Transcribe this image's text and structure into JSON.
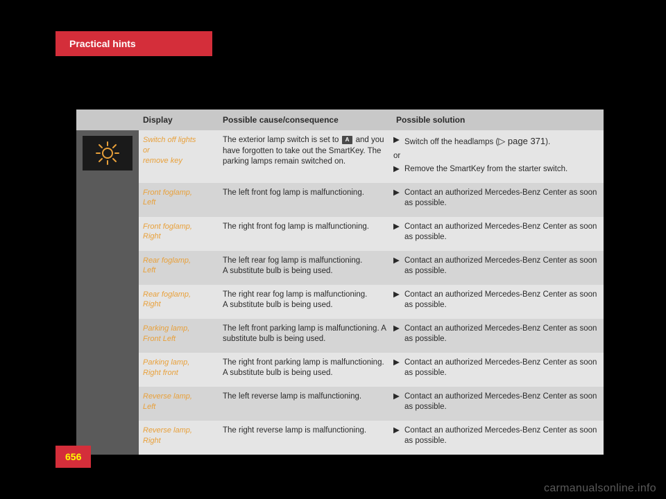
{
  "header": {
    "tab": "Practical hints"
  },
  "page_number": "656",
  "watermark": "carmanualsonline.info",
  "icon": {
    "stroke": "#e8a03a",
    "bg": "#1a1a1a"
  },
  "columns": {
    "display": "Display",
    "cause": "Possible cause/consequence",
    "solution": "Possible solution"
  },
  "first_row": {
    "display_lines": [
      "Switch off lights",
      "or",
      "remove key"
    ],
    "cause_pre": "The exterior lamp switch is set to ",
    "cause_key": "A",
    "cause_post": " and you have forgotten to take out the SmartKey. The parking lamps remain switched on.",
    "solution1": "Switch off the headlamps (",
    "solution1_ref": "▷ page 371",
    "solution1_end": ").",
    "or": "or",
    "solution2": "Remove the SmartKey from the starter switch."
  },
  "rows": [
    {
      "display": "Front foglamp,\nLeft",
      "cause": "The left front fog lamp is malfunctioning.",
      "solution": "Contact an authorized Mercedes-Benz Center as soon as possible."
    },
    {
      "display": "Front foglamp,\nRight",
      "cause": "The right front fog lamp is malfunctioning.",
      "solution": "Contact an authorized Mercedes-Benz Center as soon as possible."
    },
    {
      "display": "Rear foglamp,\nLeft",
      "cause": "The left rear fog lamp is malfunctioning.\nA substitute bulb is being used.",
      "solution": "Contact an authorized Mercedes-Benz Center as soon as possible."
    },
    {
      "display": "Rear foglamp,\nRight",
      "cause": "The right rear fog lamp is malfunctioning.\nA substitute bulb is being used.",
      "solution": "Contact an authorized Mercedes-Benz Center as soon as possible."
    },
    {
      "display": "Parking lamp,\nFront Left",
      "cause": "The left front parking lamp is malfunctioning. A substitute bulb is being used.",
      "solution": "Contact an authorized Mercedes-Benz Center as soon as possible."
    },
    {
      "display": "Parking lamp,\nRight front",
      "cause": "The right front parking lamp is malfunctioning. A substitute bulb is being used.",
      "solution": "Contact an authorized Mercedes-Benz Center as soon as possible."
    },
    {
      "display": "Reverse lamp,\nLeft",
      "cause": "The left reverse lamp is malfunctioning.",
      "solution": "Contact an authorized Mercedes-Benz Center as soon as possible."
    },
    {
      "display": "Reverse lamp,\nRight",
      "cause": "The right reverse lamp is malfunctioning.",
      "solution": "Contact an authorized Mercedes-Benz Center as soon as possible."
    }
  ],
  "colors": {
    "header_bg": "#c8c8c8",
    "row_a": "#e5e5e5",
    "row_b": "#d5d5d5",
    "sidebar": "#5a5a5a",
    "accent": "#d42e3a",
    "italic": "#e8a03a"
  }
}
